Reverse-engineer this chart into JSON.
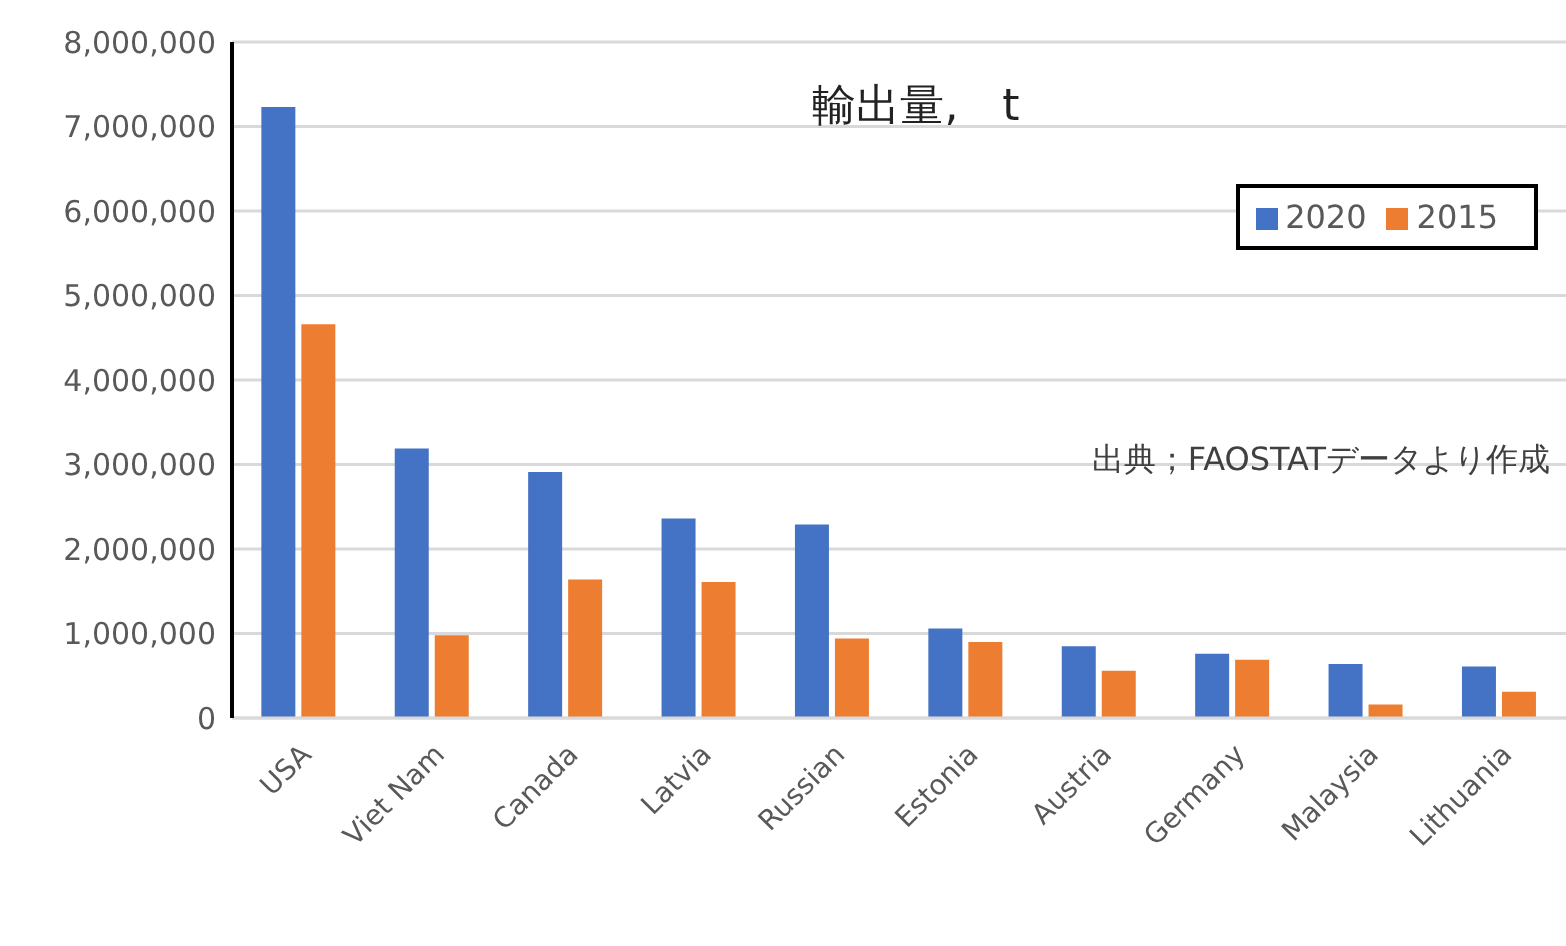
{
  "chart_data": {
    "type": "bar",
    "title": "輸出量,　t",
    "categories": [
      "USA",
      "Viet Nam",
      "Canada",
      "Latvia",
      "Russian",
      "Estonia",
      "Austria",
      "Germany",
      "Malaysia",
      "Lithuania"
    ],
    "series": [
      {
        "name": "2020",
        "color": "#4472c4",
        "values": [
          7230000,
          3190000,
          2910000,
          2360000,
          2290000,
          1060000,
          850000,
          760000,
          640000,
          610000
        ]
      },
      {
        "name": "2015",
        "color": "#ed7d31",
        "values": [
          4660000,
          980000,
          1640000,
          1610000,
          940000,
          900000,
          560000,
          690000,
          160000,
          310000
        ]
      }
    ],
    "ylim": [
      0,
      8000000
    ],
    "yticks": [
      0,
      {
        "value": 1000000,
        "label": "1,000,000"
      },
      {
        "value": 2000000,
        "label": "2,000,000"
      },
      {
        "value": 3000000,
        "label": "3,000,000"
      },
      {
        "value": 4000000,
        "label": "4,000,000"
      },
      {
        "value": 5000000,
        "label": "5,000,000"
      },
      {
        "value": 6000000,
        "label": "6,000,000"
      },
      {
        "value": 7000000,
        "label": "7,000,000"
      },
      {
        "value": 8000000,
        "label": "8,000,000"
      }
    ],
    "grid": "y",
    "legend": "top right",
    "annotations": [
      "出典；FAOSTATデータより作成"
    ]
  }
}
